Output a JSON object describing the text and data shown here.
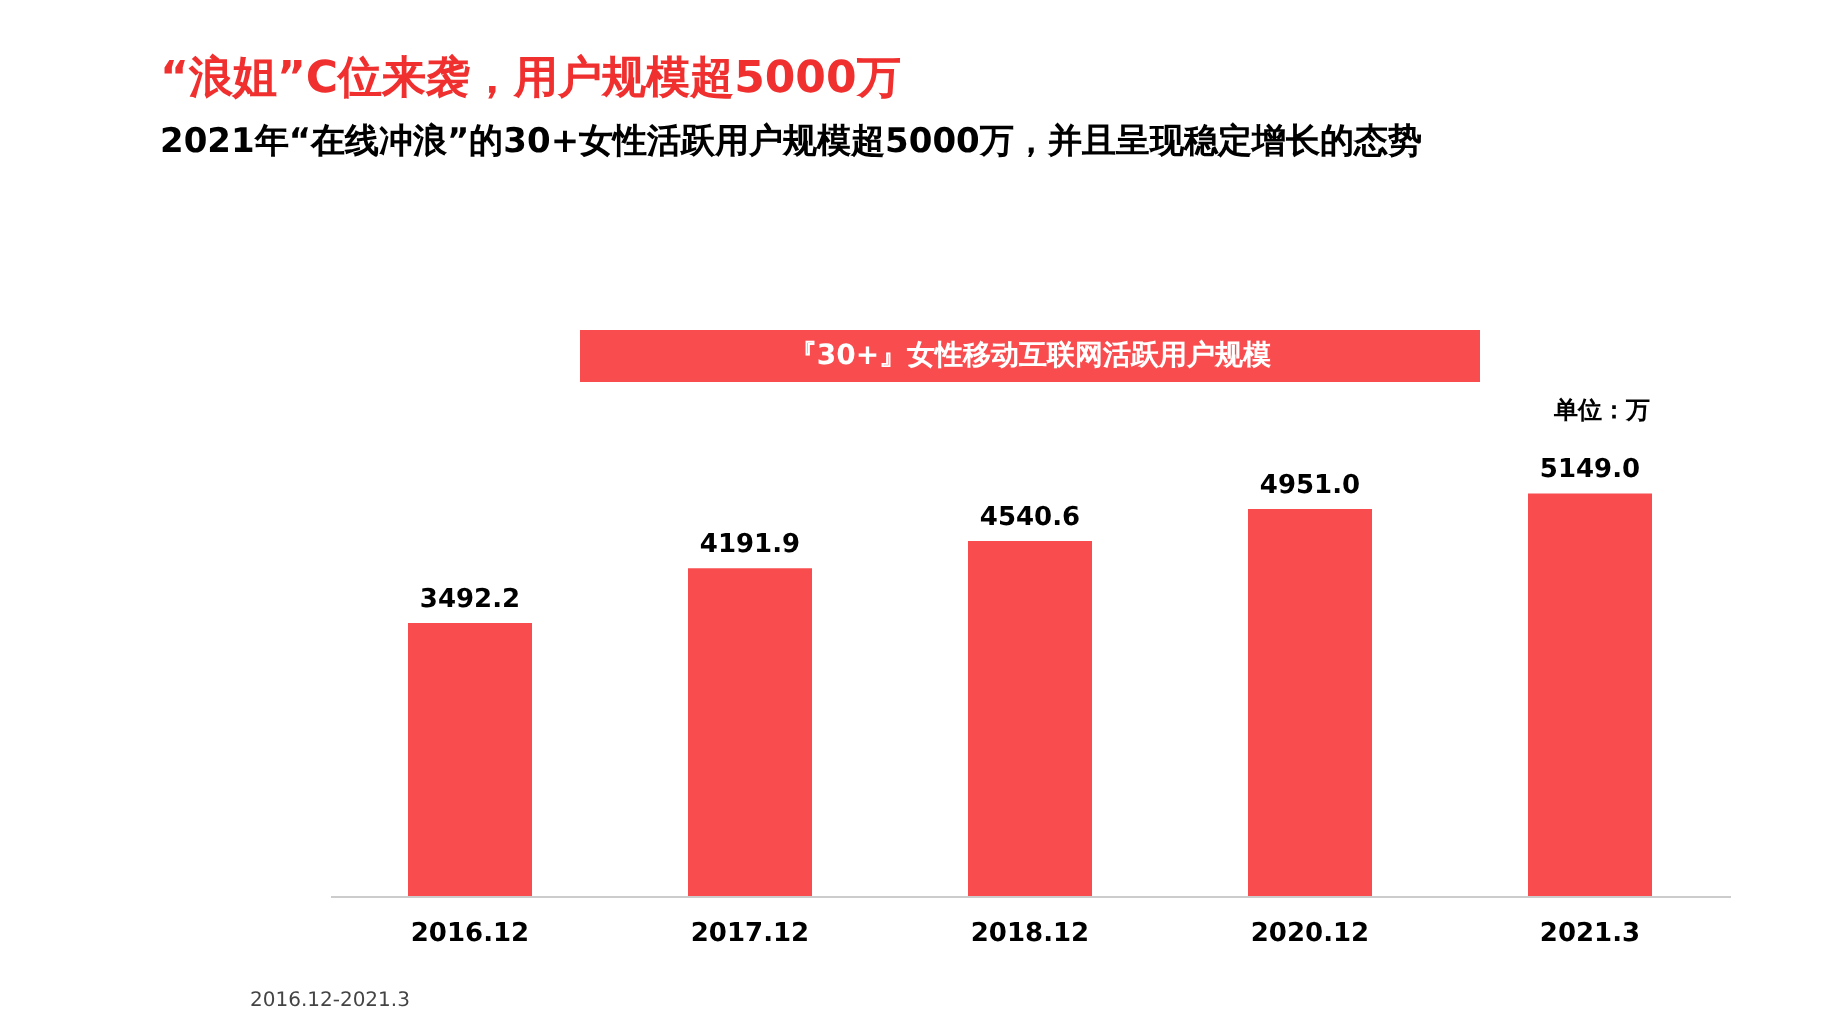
{
  "chart_data": {
    "type": "bar",
    "title": "“浪姐”C位来袭，用户规模超5000万",
    "subtitle": "2021年“在线冲浪”的30+女性活跃用户规模超5000万，并且呈现稳定增长的态势",
    "categories": [
      "2016.12",
      "2017.12",
      "2018.12",
      "2020.12",
      "2021.3"
    ],
    "series": [
      {
        "color": "#f94c4f",
        "values": [
          3492.2,
          4191.9,
          4540.6,
          4951.0,
          5149.0
        ],
        "value_labels": [
          "3492.2",
          "4191.9",
          "4540.6",
          "4951.0",
          "5149.0"
        ]
      }
    ],
    "grid": false,
    "tick_labels": "x",
    "annotations": [
      "『30+』女性移动互联网活跃用户规模",
      "单位：万",
      "2016.12-2021.3"
    ]
  }
}
